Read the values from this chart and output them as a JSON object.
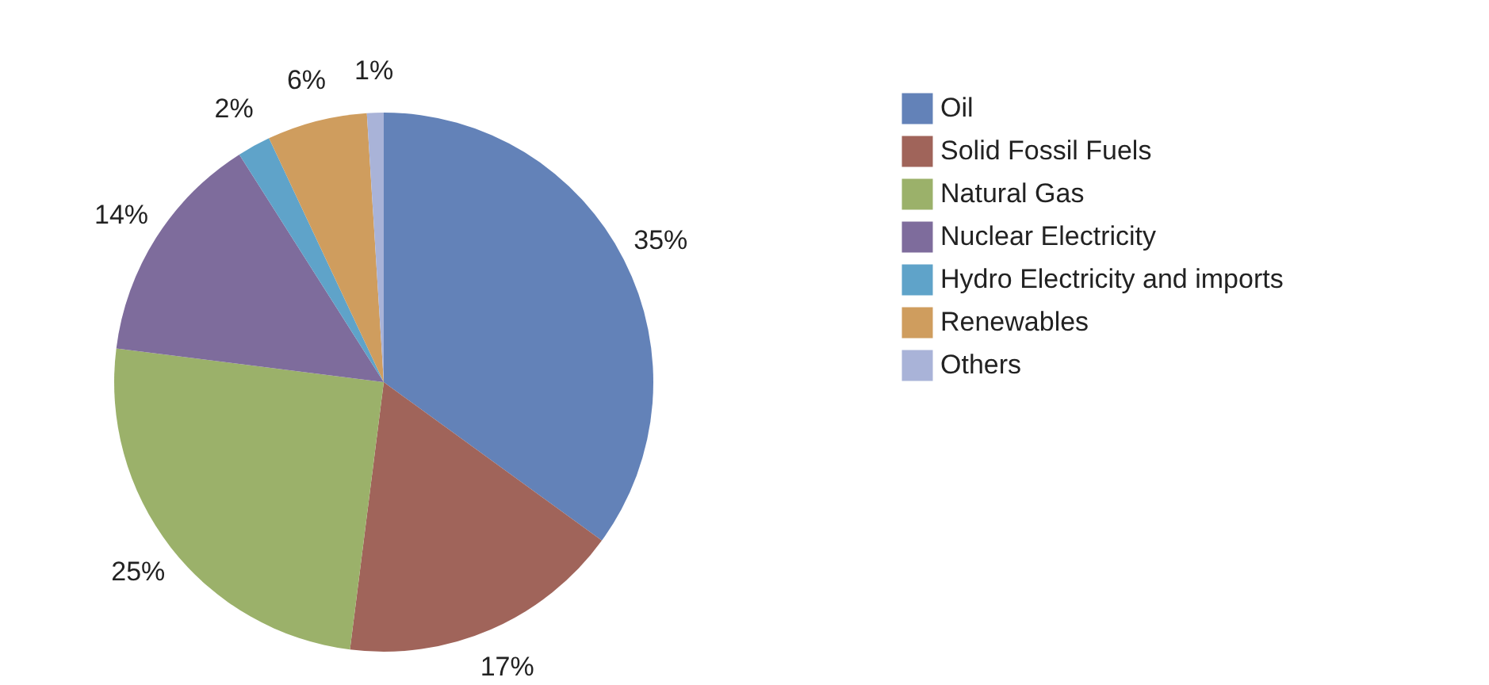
{
  "chart_data": {
    "type": "pie",
    "categories": [
      "Oil",
      "Solid Fossil Fuels",
      "Natural Gas",
      "Nuclear Electricity",
      "Hydro Electricity and imports",
      "Renewables",
      "Others"
    ],
    "values": [
      35,
      17,
      25,
      14,
      2,
      6,
      1
    ],
    "value_labels": [
      "35%",
      "17%",
      "25%",
      "14%",
      "2%",
      "6%",
      "1%"
    ],
    "colors": [
      "#6382b8",
      "#a0645a",
      "#9bb16a",
      "#7e6c9c",
      "#5fa3c9",
      "#cf9d5e",
      "#a9b3d8"
    ],
    "legend": "right"
  }
}
